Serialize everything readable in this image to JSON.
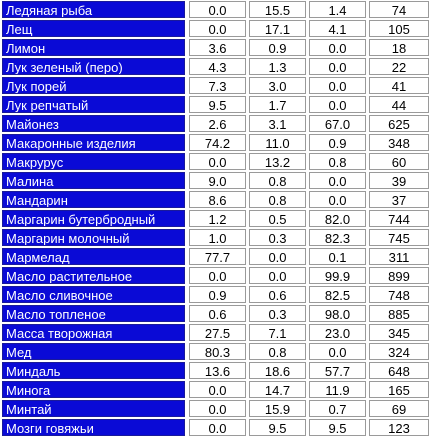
{
  "rows": [
    {
      "name": "Ледяная рыба",
      "v1": "0.0",
      "v2": "15.5",
      "v3": "1.4",
      "v4": "74"
    },
    {
      "name": "Лещ",
      "v1": "0.0",
      "v2": "17.1",
      "v3": "4.1",
      "v4": "105"
    },
    {
      "name": "Лимон",
      "v1": "3.6",
      "v2": "0.9",
      "v3": "0.0",
      "v4": "18"
    },
    {
      "name": "Лук зеленый (перо)",
      "v1": "4.3",
      "v2": "1.3",
      "v3": "0.0",
      "v4": "22"
    },
    {
      "name": "Лук порей",
      "v1": "7.3",
      "v2": "3.0",
      "v3": "0.0",
      "v4": "41"
    },
    {
      "name": "Лук репчатый",
      "v1": "9.5",
      "v2": "1.7",
      "v3": "0.0",
      "v4": "44"
    },
    {
      "name": "Майонез",
      "v1": "2.6",
      "v2": "3.1",
      "v3": "67.0",
      "v4": "625"
    },
    {
      "name": "Макаронные изделия",
      "v1": "74.2",
      "v2": "11.0",
      "v3": "0.9",
      "v4": "348"
    },
    {
      "name": "Макрурус",
      "v1": "0.0",
      "v2": "13.2",
      "v3": "0.8",
      "v4": "60"
    },
    {
      "name": "Малина",
      "v1": "9.0",
      "v2": "0.8",
      "v3": "0.0",
      "v4": "39"
    },
    {
      "name": "Мандарин",
      "v1": "8.6",
      "v2": "0.8",
      "v3": "0.0",
      "v4": "37"
    },
    {
      "name": "Маргарин бутербродный",
      "v1": "1.2",
      "v2": "0.5",
      "v3": "82.0",
      "v4": "744"
    },
    {
      "name": "Маргарин молочный",
      "v1": "1.0",
      "v2": "0.3",
      "v3": "82.3",
      "v4": "745"
    },
    {
      "name": "Мармелад",
      "v1": "77.7",
      "v2": "0.0",
      "v3": "0.1",
      "v4": "311"
    },
    {
      "name": "Масло растительное",
      "v1": "0.0",
      "v2": "0.0",
      "v3": "99.9",
      "v4": "899"
    },
    {
      "name": "Масло сливочное",
      "v1": "0.9",
      "v2": "0.6",
      "v3": "82.5",
      "v4": "748"
    },
    {
      "name": "Масло топленое",
      "v1": "0.6",
      "v2": "0.3",
      "v3": "98.0",
      "v4": "885"
    },
    {
      "name": "Масса творожная",
      "v1": "27.5",
      "v2": "7.1",
      "v3": "23.0",
      "v4": "345"
    },
    {
      "name": "Мед",
      "v1": "80.3",
      "v2": "0.8",
      "v3": "0.0",
      "v4": "324"
    },
    {
      "name": "Миндаль",
      "v1": "13.6",
      "v2": "18.6",
      "v3": "57.7",
      "v4": "648"
    },
    {
      "name": "Минога",
      "v1": "0.0",
      "v2": "14.7",
      "v3": "11.9",
      "v4": "165"
    },
    {
      "name": "Минтай",
      "v1": "0.0",
      "v2": "15.9",
      "v3": "0.7",
      "v4": "69"
    },
    {
      "name": "Мозги говяжьи",
      "v1": "0.0",
      "v2": "9.5",
      "v3": "9.5",
      "v4": "123"
    }
  ]
}
